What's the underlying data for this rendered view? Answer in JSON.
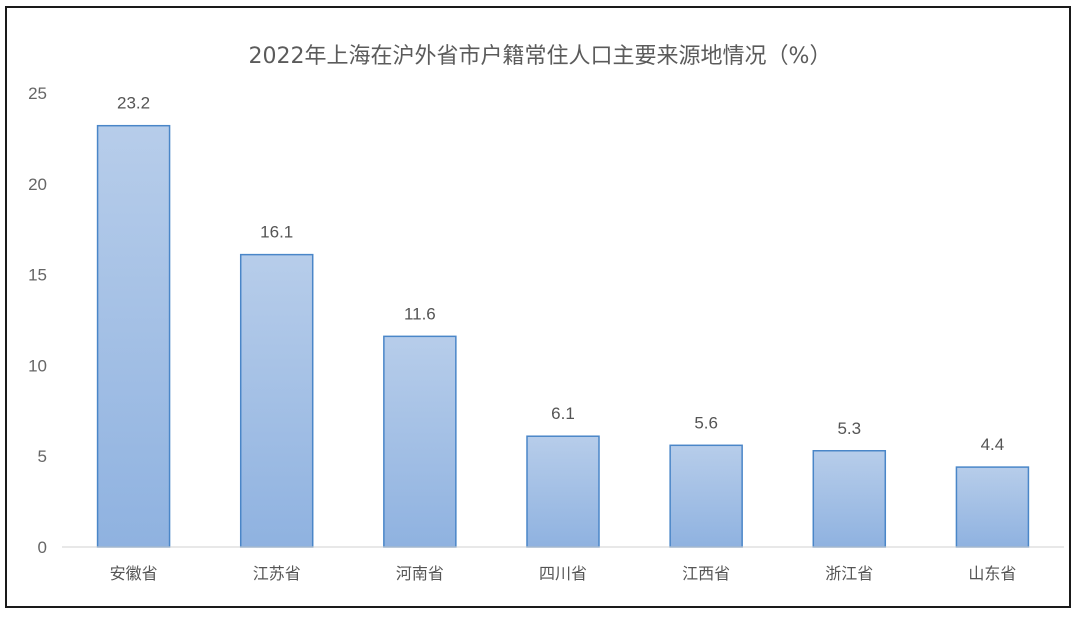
{
  "chart_data": {
    "type": "bar",
    "title": "2022年上海在沪外省市户籍常住人口主要来源地情况（%）",
    "categories": [
      "安徽省",
      "江苏省",
      "河南省",
      "四川省",
      "江西省",
      "浙江省",
      "山东省"
    ],
    "values": [
      23.2,
      16.1,
      11.6,
      6.1,
      5.6,
      5.3,
      4.4
    ],
    "yticks": [
      0,
      5,
      10,
      15,
      20,
      25
    ],
    "ylim": [
      0,
      25
    ],
    "grid": false,
    "legend": "none",
    "colors": {
      "bar_top": "#b7cdea",
      "bar_bottom": "#8fb2e0",
      "bar_stroke": "#4a86c8",
      "axis": "#d0d0d0"
    }
  }
}
